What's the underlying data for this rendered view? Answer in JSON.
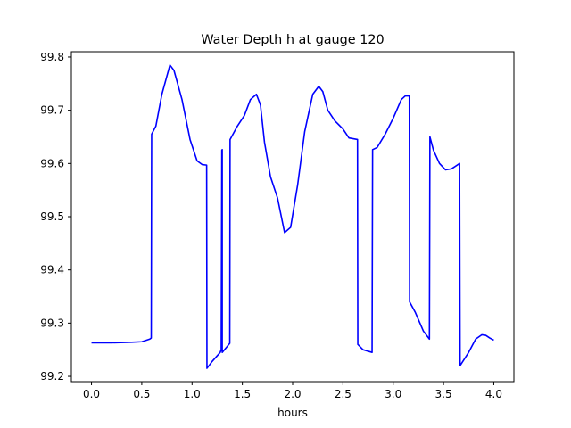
{
  "chart_data": {
    "type": "line",
    "title": "Water Depth h at gauge 120",
    "xlabel": "hours",
    "ylabel": "",
    "xlim": [
      -0.2,
      4.2
    ],
    "ylim": [
      99.19,
      99.81
    ],
    "xticks": [
      0.0,
      0.5,
      1.0,
      1.5,
      2.0,
      2.5,
      3.0,
      3.5,
      4.0
    ],
    "xtick_labels": [
      "0.0",
      "0.5",
      "1.0",
      "1.5",
      "2.0",
      "2.5",
      "3.0",
      "3.5",
      "4.0"
    ],
    "yticks": [
      99.2,
      99.3,
      99.4,
      99.5,
      99.6,
      99.7,
      99.8
    ],
    "ytick_labels": [
      "99.2",
      "99.3",
      "99.4",
      "99.5",
      "99.6",
      "99.7",
      "99.8"
    ],
    "grid": false,
    "series": [
      {
        "color": "#0000ff",
        "x": [
          0.0,
          0.2,
          0.4,
          0.5,
          0.58,
          0.594,
          0.598,
          0.64,
          0.7,
          0.78,
          0.82,
          0.9,
          0.98,
          1.05,
          1.1,
          1.145,
          1.148,
          1.2,
          1.28,
          1.29,
          1.296,
          1.3,
          1.3,
          1.375,
          1.378,
          1.45,
          1.52,
          1.58,
          1.64,
          1.68,
          1.72,
          1.78,
          1.85,
          1.92,
          1.98,
          2.05,
          2.12,
          2.2,
          2.26,
          2.3,
          2.35,
          2.42,
          2.5,
          2.56,
          2.645,
          2.648,
          2.7,
          2.79,
          2.795,
          2.84,
          2.92,
          3.0,
          3.08,
          3.12,
          3.15,
          3.16,
          3.163,
          3.22,
          3.3,
          3.36,
          3.365,
          3.4,
          3.46,
          3.52,
          3.58,
          3.66,
          3.665,
          3.75,
          3.82,
          3.88,
          3.92,
          3.96,
          4.0
        ],
        "y": [
          99.263,
          99.263,
          99.264,
          99.265,
          99.27,
          99.272,
          99.655,
          99.67,
          99.73,
          99.785,
          99.775,
          99.72,
          99.645,
          99.605,
          99.598,
          99.597,
          99.215,
          99.228,
          99.245,
          99.25,
          99.625,
          99.626,
          99.245,
          99.262,
          99.645,
          99.67,
          99.69,
          99.72,
          99.73,
          99.71,
          99.64,
          99.575,
          99.535,
          99.47,
          99.48,
          99.56,
          99.66,
          99.73,
          99.745,
          99.735,
          99.7,
          99.68,
          99.665,
          99.648,
          99.645,
          99.26,
          99.25,
          99.245,
          99.626,
          99.63,
          99.655,
          99.685,
          99.72,
          99.727,
          99.727,
          99.727,
          99.34,
          99.32,
          99.285,
          99.27,
          99.65,
          99.625,
          99.6,
          99.588,
          99.59,
          99.6,
          99.22,
          99.245,
          99.27,
          99.278,
          99.277,
          99.272,
          99.268
        ]
      }
    ]
  }
}
